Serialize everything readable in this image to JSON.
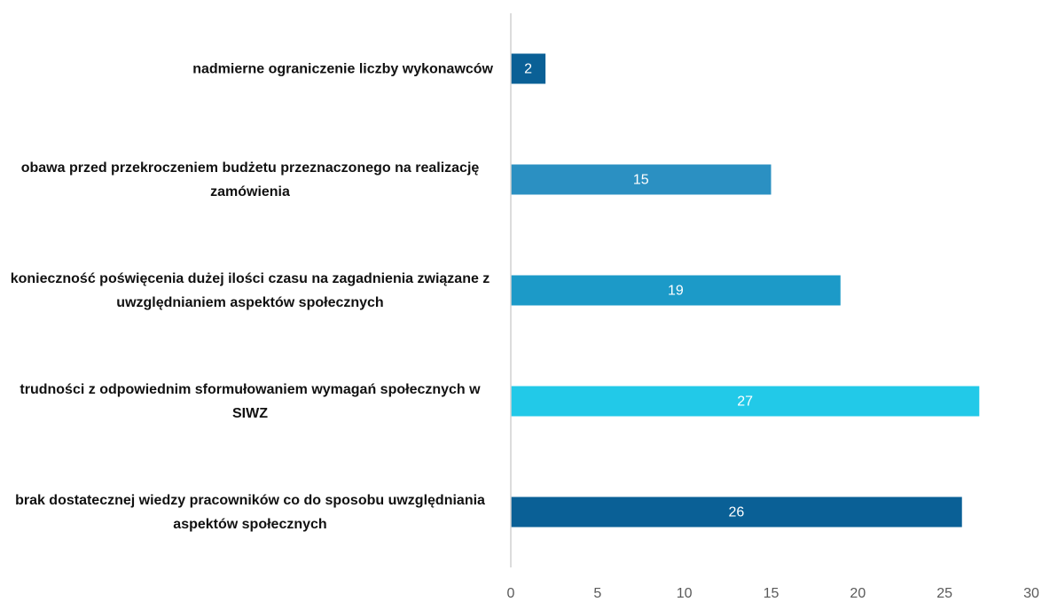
{
  "chart_data": {
    "type": "barh",
    "categories": [
      "nadmierne ograniczenie liczby wykonawców",
      "obawa przed przekroczeniem budżetu przeznaczonego na realizację zamówienia",
      "konieczność poświęcenia dużej ilości czasu na zagadnienia związane z uwzględnianiem aspektów społecznych",
      "trudności z odpowiednim sformułowaniem wymagań społecznych w SIWZ",
      "brak dostatecznej wiedzy pracowników co do sposobu uwzględniania aspektów społecznych"
    ],
    "values": [
      2,
      15,
      19,
      27,
      26
    ],
    "colors": [
      "#0a6096",
      "#2b90c2",
      "#1c9ac8",
      "#22c9e8",
      "#0a6096"
    ],
    "xlim": [
      0,
      30
    ],
    "xticks": [
      0,
      5,
      10,
      15,
      20,
      25,
      30
    ]
  }
}
